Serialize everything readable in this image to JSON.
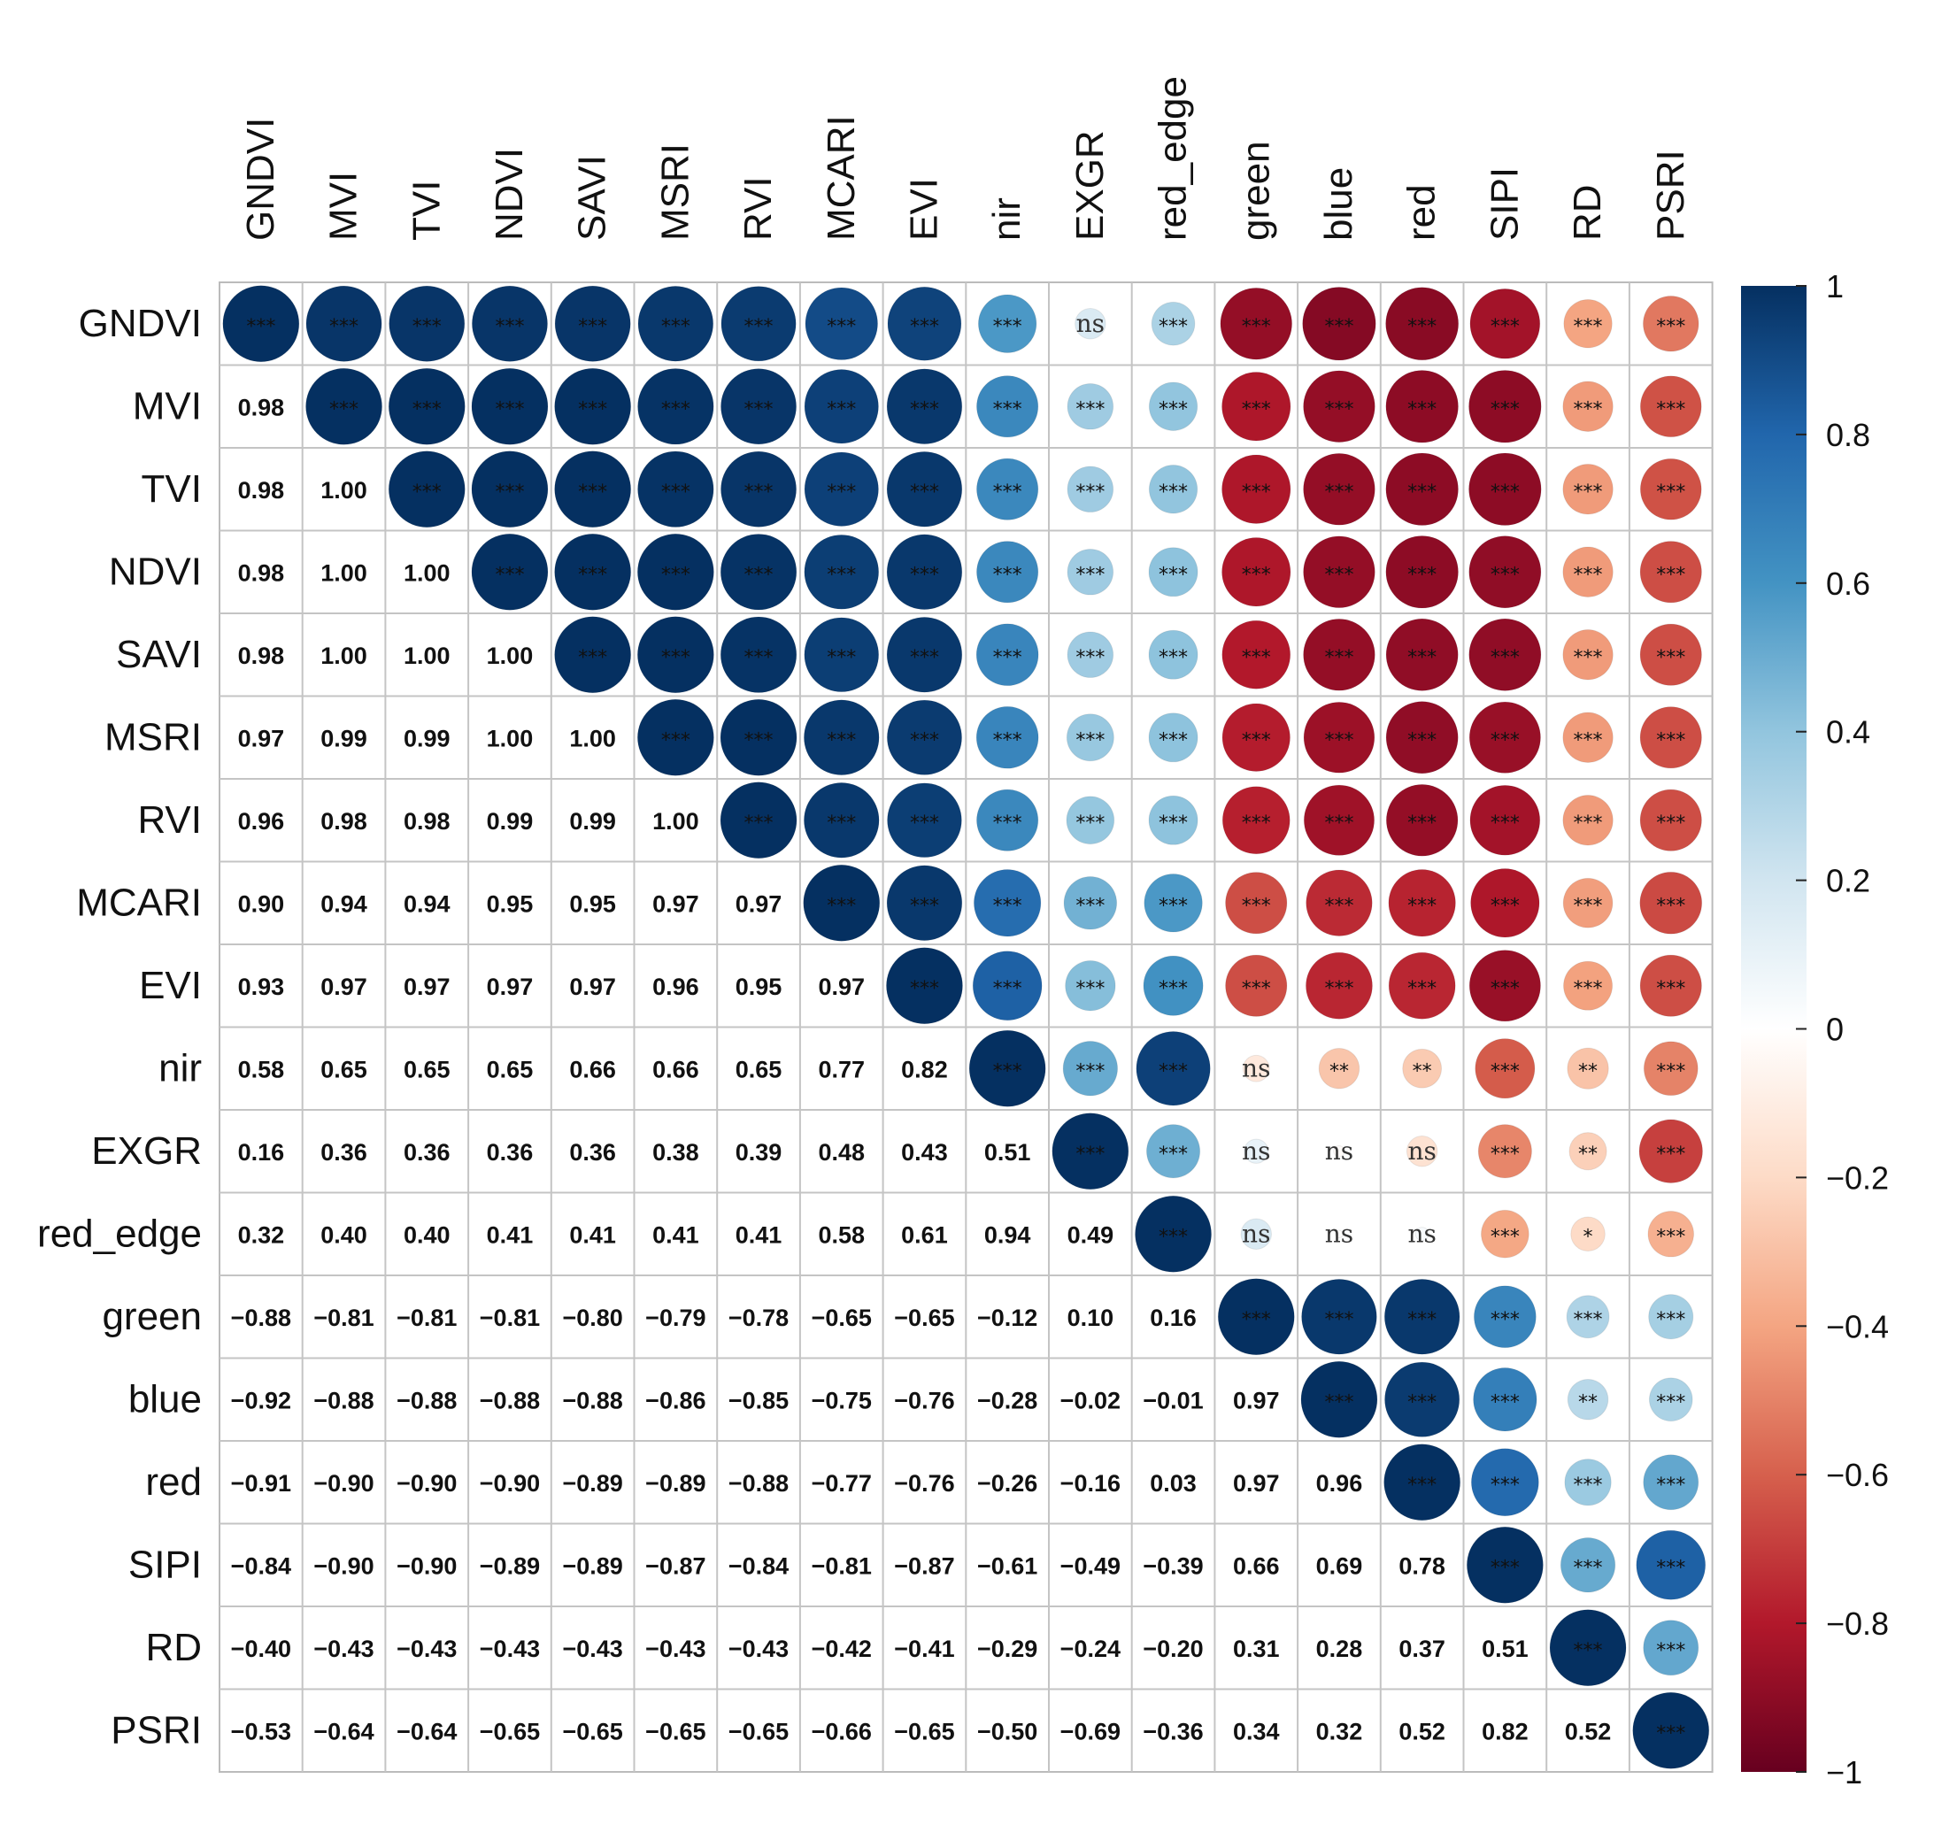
{
  "chart_data": {
    "type": "heatmap",
    "subtype": "correlation-matrix (upper: circles + significance, lower: coefficients)",
    "variables": [
      "GNDVI",
      "MVI",
      "TVI",
      "NDVI",
      "SAVI",
      "MSRI",
      "RVI",
      "MCARI",
      "EVI",
      "nir",
      "EXGR",
      "red_edge",
      "green",
      "blue",
      "red",
      "SIPI",
      "RD",
      "PSRI"
    ],
    "lower": [
      [],
      [
        "0.98"
      ],
      [
        "0.98",
        "1.00"
      ],
      [
        "0.98",
        "1.00",
        "1.00"
      ],
      [
        "0.98",
        "1.00",
        "1.00",
        "1.00"
      ],
      [
        "0.97",
        "0.99",
        "0.99",
        "1.00",
        "1.00"
      ],
      [
        "0.96",
        "0.98",
        "0.98",
        "0.99",
        "0.99",
        "1.00"
      ],
      [
        "0.90",
        "0.94",
        "0.94",
        "0.95",
        "0.95",
        "0.97",
        "0.97"
      ],
      [
        "0.93",
        "0.97",
        "0.97",
        "0.97",
        "0.97",
        "0.96",
        "0.95",
        "0.97"
      ],
      [
        "0.58",
        "0.65",
        "0.65",
        "0.65",
        "0.66",
        "0.66",
        "0.65",
        "0.77",
        "0.82"
      ],
      [
        "0.16",
        "0.36",
        "0.36",
        "0.36",
        "0.36",
        "0.38",
        "0.39",
        "0.48",
        "0.43",
        "0.51"
      ],
      [
        "0.32",
        "0.40",
        "0.40",
        "0.41",
        "0.41",
        "0.41",
        "0.41",
        "0.58",
        "0.61",
        "0.94",
        "0.49"
      ],
      [
        "−0.88",
        "−0.81",
        "−0.81",
        "−0.81",
        "−0.80",
        "−0.79",
        "−0.78",
        "−0.65",
        "−0.65",
        "−0.12",
        "0.10",
        "0.16"
      ],
      [
        "−0.92",
        "−0.88",
        "−0.88",
        "−0.88",
        "−0.88",
        "−0.86",
        "−0.85",
        "−0.75",
        "−0.76",
        "−0.28",
        "−0.02",
        "−0.01",
        "0.97"
      ],
      [
        "−0.91",
        "−0.90",
        "−0.90",
        "−0.90",
        "−0.89",
        "−0.89",
        "−0.88",
        "−0.77",
        "−0.76",
        "−0.26",
        "−0.16",
        "0.03",
        "0.97",
        "0.96"
      ],
      [
        "−0.84",
        "−0.90",
        "−0.90",
        "−0.89",
        "−0.89",
        "−0.87",
        "−0.84",
        "−0.81",
        "−0.87",
        "−0.61",
        "−0.49",
        "−0.39",
        "0.66",
        "0.69",
        "0.78"
      ],
      [
        "−0.40",
        "−0.43",
        "−0.43",
        "−0.43",
        "−0.43",
        "−0.43",
        "−0.43",
        "−0.42",
        "−0.41",
        "−0.29",
        "−0.24",
        "−0.20",
        "0.31",
        "0.28",
        "0.37",
        "0.51"
      ],
      [
        "−0.53",
        "−0.64",
        "−0.64",
        "−0.65",
        "−0.65",
        "−0.65",
        "−0.65",
        "−0.66",
        "−0.65",
        "−0.50",
        "−0.69",
        "−0.36",
        "0.34",
        "0.32",
        "0.52",
        "0.82",
        "0.52"
      ]
    ],
    "diagonal_significance": "***",
    "upper_significance": [
      [
        "***",
        "***",
        "***",
        "***",
        "***",
        "***",
        "***",
        "***",
        "***",
        "ns",
        "***",
        "***",
        "***",
        "***",
        "***",
        "***",
        "***"
      ],
      [
        "***",
        "***",
        "***",
        "***",
        "***",
        "***",
        "***",
        "***",
        "***",
        "***",
        "***",
        "***",
        "***",
        "***",
        "***",
        "***"
      ],
      [
        "***",
        "***",
        "***",
        "***",
        "***",
        "***",
        "***",
        "***",
        "***",
        "***",
        "***",
        "***",
        "***",
        "***",
        "***"
      ],
      [
        "***",
        "***",
        "***",
        "***",
        "***",
        "***",
        "***",
        "***",
        "***",
        "***",
        "***",
        "***",
        "***",
        "***"
      ],
      [
        "***",
        "***",
        "***",
        "***",
        "***",
        "***",
        "***",
        "***",
        "***",
        "***",
        "***",
        "***",
        "***"
      ],
      [
        "***",
        "***",
        "***",
        "***",
        "***",
        "***",
        "***",
        "***",
        "***",
        "***",
        "***",
        "***"
      ],
      [
        "***",
        "***",
        "***",
        "***",
        "***",
        "***",
        "***",
        "***",
        "***",
        "***",
        "***"
      ],
      [
        "***",
        "***",
        "***",
        "***",
        "***",
        "***",
        "***",
        "***",
        "***",
        "***"
      ],
      [
        "***",
        "***",
        "***",
        "***",
        "***",
        "***",
        "***",
        "***",
        "***"
      ],
      [
        "***",
        "***",
        "ns",
        "**",
        "**",
        "***",
        "**",
        "***"
      ],
      [
        "***",
        "ns",
        "ns",
        "ns",
        "***",
        "**",
        "***"
      ],
      [
        "ns",
        "ns",
        "ns",
        "***",
        "*",
        "***"
      ],
      [
        "***",
        "***",
        "***",
        "***",
        "***"
      ],
      [
        "***",
        "***",
        "**",
        "***"
      ],
      [
        "***",
        "***",
        "***"
      ],
      [
        "***",
        "***"
      ],
      [
        "***"
      ]
    ],
    "colorbar": {
      "range": [
        -1,
        1
      ],
      "ticks": [
        "1",
        "0.8",
        "0.6",
        "0.4",
        "0.2",
        "0",
        "−0.2",
        "−0.4",
        "−0.6",
        "−0.8",
        "−1"
      ],
      "tick_values": [
        1,
        0.8,
        0.6,
        0.4,
        0.2,
        0,
        -0.2,
        -0.4,
        -0.6,
        -0.8,
        -1
      ],
      "colors": [
        "#67001f",
        "#b2182b",
        "#d6604d",
        "#f4a582",
        "#fddbc7",
        "#ffffff",
        "#d1e5f0",
        "#92c5de",
        "#4393c3",
        "#2166ac",
        "#053061"
      ]
    }
  }
}
